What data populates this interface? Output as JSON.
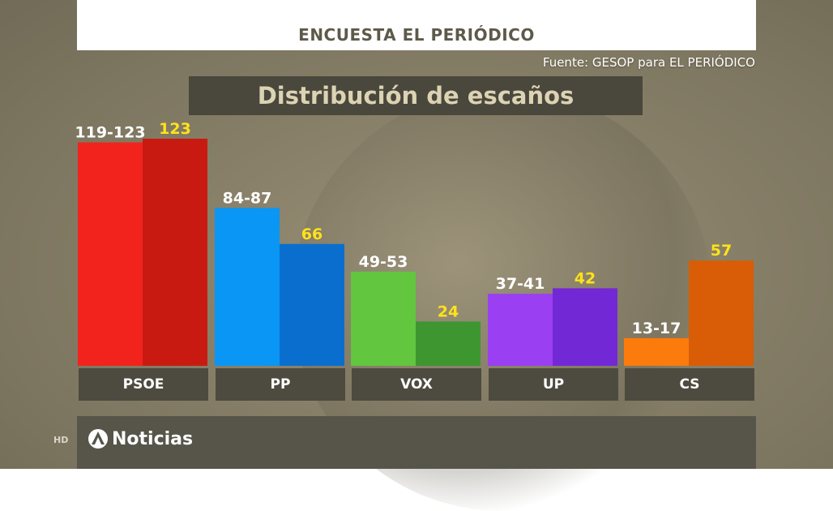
{
  "header": {
    "survey_title": "ENCUESTA EL PERIÓDICO",
    "source": "Fuente: GESOP para EL PERIÓDICO"
  },
  "footer": {
    "hd": "HD",
    "brand": "Noticias"
  },
  "chart_data": {
    "type": "bar",
    "title": "Distribución de escaños",
    "categories": [
      "PSOE",
      "PP",
      "VOX",
      "UP",
      "CS"
    ],
    "series": [
      {
        "values": [
          121,
          85.5,
          51,
          39,
          15
        ],
        "labels": [
          "119-123",
          "84-87",
          "49-53",
          "37-41",
          "13-17"
        ],
        "label_color": "#ffffff",
        "colors": [
          "#f2231d",
          "#0a96f5",
          "#62c63f",
          "#9b3ff2",
          "#fb7b0c"
        ]
      },
      {
        "values": [
          123,
          66,
          24,
          42,
          57
        ],
        "labels": [
          "123",
          "66",
          "24",
          "42",
          "57"
        ],
        "label_color": "#ffe21a",
        "colors": [
          "#c91a12",
          "#0a6ecf",
          "#3e9631",
          "#7328d6",
          "#d85d06"
        ]
      }
    ],
    "ylim": [
      0,
      123
    ],
    "grid": false,
    "legend": "none"
  }
}
